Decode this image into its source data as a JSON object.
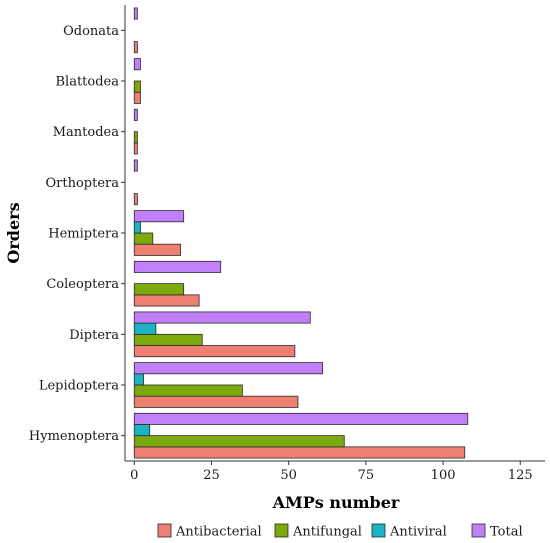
{
  "chart_data": {
    "type": "bar",
    "orientation": "horizontal",
    "categories": [
      "Odonata",
      "Blattodea",
      "Mantodea",
      "Orthoptera",
      "Hemiptera",
      "Coleoptera",
      "Diptera",
      "Lepidoptera",
      "Hymenoptera"
    ],
    "series": [
      {
        "name": "Antibacterial",
        "color": "#f07f73",
        "values": [
          1,
          2,
          1,
          1,
          15,
          21,
          52,
          53,
          107
        ]
      },
      {
        "name": "Antifungal",
        "color": "#7caa0c",
        "values": [
          0,
          2,
          1,
          0,
          6,
          16,
          22,
          35,
          68
        ]
      },
      {
        "name": "Antiviral",
        "color": "#1db3c3",
        "values": [
          0,
          0,
          0,
          0,
          2,
          0,
          7,
          3,
          5
        ]
      },
      {
        "name": "Total",
        "color": "#c180f7",
        "values": [
          1,
          2,
          1,
          1,
          16,
          28,
          57,
          61,
          108
        ]
      }
    ],
    "xlabel": "AMPs number",
    "ylabel": "Orders",
    "xlim": [
      -3,
      133
    ],
    "xticks": [
      0,
      25,
      50,
      75,
      100,
      125
    ],
    "grid": false,
    "legend_position": "bottom"
  }
}
